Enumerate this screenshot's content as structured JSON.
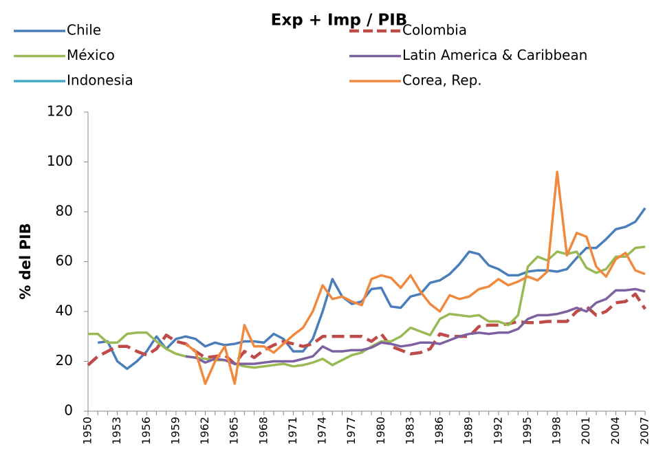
{
  "chart_data": {
    "type": "line",
    "title": "Exp + Imp / PIB",
    "y_label": "% del PIB",
    "x": [
      1950,
      1951,
      1952,
      1953,
      1954,
      1955,
      1956,
      1957,
      1958,
      1959,
      1960,
      1961,
      1962,
      1963,
      1964,
      1965,
      1966,
      1967,
      1968,
      1969,
      1970,
      1971,
      1972,
      1973,
      1974,
      1975,
      1976,
      1977,
      1978,
      1979,
      1980,
      1981,
      1982,
      1983,
      1984,
      1985,
      1986,
      1987,
      1988,
      1989,
      1990,
      1991,
      1992,
      1993,
      1994,
      1995,
      1996,
      1997,
      1998,
      1999,
      2000,
      2001,
      2002,
      2003,
      2004,
      2005,
      2006,
      2007
    ],
    "xlim": [
      1950,
      2007
    ],
    "xticks": [
      1950,
      1953,
      1956,
      1959,
      1962,
      1965,
      1968,
      1971,
      1974,
      1977,
      1980,
      1983,
      1986,
      1989,
      1992,
      1995,
      1998,
      2001,
      2004,
      2007
    ],
    "ylim": [
      0,
      120
    ],
    "yticks": [
      0,
      20,
      40,
      60,
      80,
      100,
      120
    ],
    "grid": false,
    "legend": "top",
    "series": [
      {
        "name": "Chile",
        "color": "#4a7ebb",
        "dashed": false,
        "values": [
          null,
          27.5,
          28,
          20,
          17,
          20,
          24,
          30,
          25,
          29,
          30,
          29,
          26,
          27.5,
          26.5,
          27,
          28,
          28,
          27.5,
          31,
          29,
          24,
          24,
          29,
          40,
          53,
          46,
          43,
          44,
          49,
          49.5,
          42,
          41.5,
          46,
          47,
          51.5,
          52.5,
          55,
          59,
          64,
          63,
          58.5,
          57,
          54.5,
          54.5,
          56,
          56.5,
          56.5,
          56,
          57,
          61.5,
          65.5,
          65.5,
          69,
          73,
          74,
          76,
          81.5
        ]
      },
      {
        "name": "Colombia",
        "color": "#be4b48",
        "dashed": true,
        "values": [
          18.5,
          22,
          24,
          26,
          26,
          24,
          22.5,
          25,
          30.5,
          28,
          27,
          24,
          21.5,
          22,
          22.5,
          19,
          24,
          21.5,
          24.5,
          26.5,
          28,
          27,
          26,
          27,
          30,
          30,
          30,
          30,
          30,
          28,
          31,
          26,
          24.5,
          23,
          23.5,
          25,
          31,
          30,
          30,
          30,
          34,
          34.5,
          34.5,
          35,
          36,
          35.5,
          35.5,
          36,
          36,
          36,
          40,
          42,
          38.5,
          40,
          43.5,
          44,
          47,
          41
        ]
      },
      {
        "name": "México",
        "color": "#98b954",
        "dashed": false,
        "values": [
          31,
          31,
          27.5,
          27.5,
          31,
          31.5,
          31.5,
          28,
          25,
          23,
          22,
          21.5,
          21,
          20.5,
          20.5,
          19,
          18,
          17.5,
          18,
          18.5,
          19,
          18,
          18.5,
          19.5,
          21,
          18.5,
          20.5,
          22.5,
          23.5,
          26,
          28,
          28,
          30,
          33.5,
          32,
          30.5,
          37,
          39,
          38.5,
          38,
          38.5,
          36,
          36,
          34.5,
          38.5,
          58,
          62,
          60.5,
          64,
          63,
          64,
          57.5,
          55.5,
          57,
          62,
          62,
          65.5,
          66
        ]
      },
      {
        "name": "Latin America & Caribbean",
        "color": "#7d60a0",
        "dashed": false,
        "values": [
          null,
          null,
          null,
          null,
          null,
          null,
          null,
          null,
          null,
          null,
          22,
          21.5,
          19.5,
          21,
          20.5,
          19,
          19,
          19,
          19.5,
          20,
          20,
          20,
          21,
          22,
          26,
          24,
          24,
          24.5,
          24.5,
          25.5,
          27.5,
          27,
          26,
          26.5,
          27.5,
          27.5,
          27,
          28.5,
          30,
          31,
          31.5,
          31,
          31.5,
          31.5,
          33,
          37,
          38.5,
          38.5,
          39,
          40,
          41.5,
          40,
          43.5,
          45,
          48.5,
          48.5,
          49,
          48
        ]
      },
      {
        "name": "Indonesia",
        "color": "#46aac5",
        "dashed": false,
        "values": [
          null,
          null,
          null,
          null,
          null,
          null,
          null,
          null,
          null,
          null,
          null,
          null,
          null,
          null,
          null,
          null,
          null,
          null,
          null,
          null,
          null,
          null,
          null,
          null,
          null,
          null,
          null,
          null,
          null,
          null,
          null,
          null,
          null,
          null,
          null,
          null,
          null,
          null,
          null,
          null,
          null,
          null,
          null,
          null,
          null,
          null,
          null,
          null,
          null,
          null,
          null,
          null,
          null,
          null,
          null,
          null,
          null,
          null
        ]
      },
      {
        "name": "Corea, Rep.",
        "color": "#f0893e",
        "dashed": false,
        "values": [
          null,
          null,
          null,
          null,
          null,
          null,
          null,
          null,
          null,
          null,
          27,
          24,
          11,
          20,
          26,
          11,
          34.5,
          26,
          26,
          23.5,
          27,
          30.5,
          33.5,
          40,
          50.5,
          45,
          46,
          44,
          42.5,
          53,
          54.5,
          53.5,
          49.5,
          54.5,
          48,
          43,
          40,
          46.5,
          45,
          46,
          49,
          50,
          53,
          50.5,
          52,
          54,
          52.5,
          56,
          96,
          62.5,
          71.5,
          70,
          58,
          54,
          61,
          63.5,
          56.5,
          55
        ]
      }
    ]
  }
}
